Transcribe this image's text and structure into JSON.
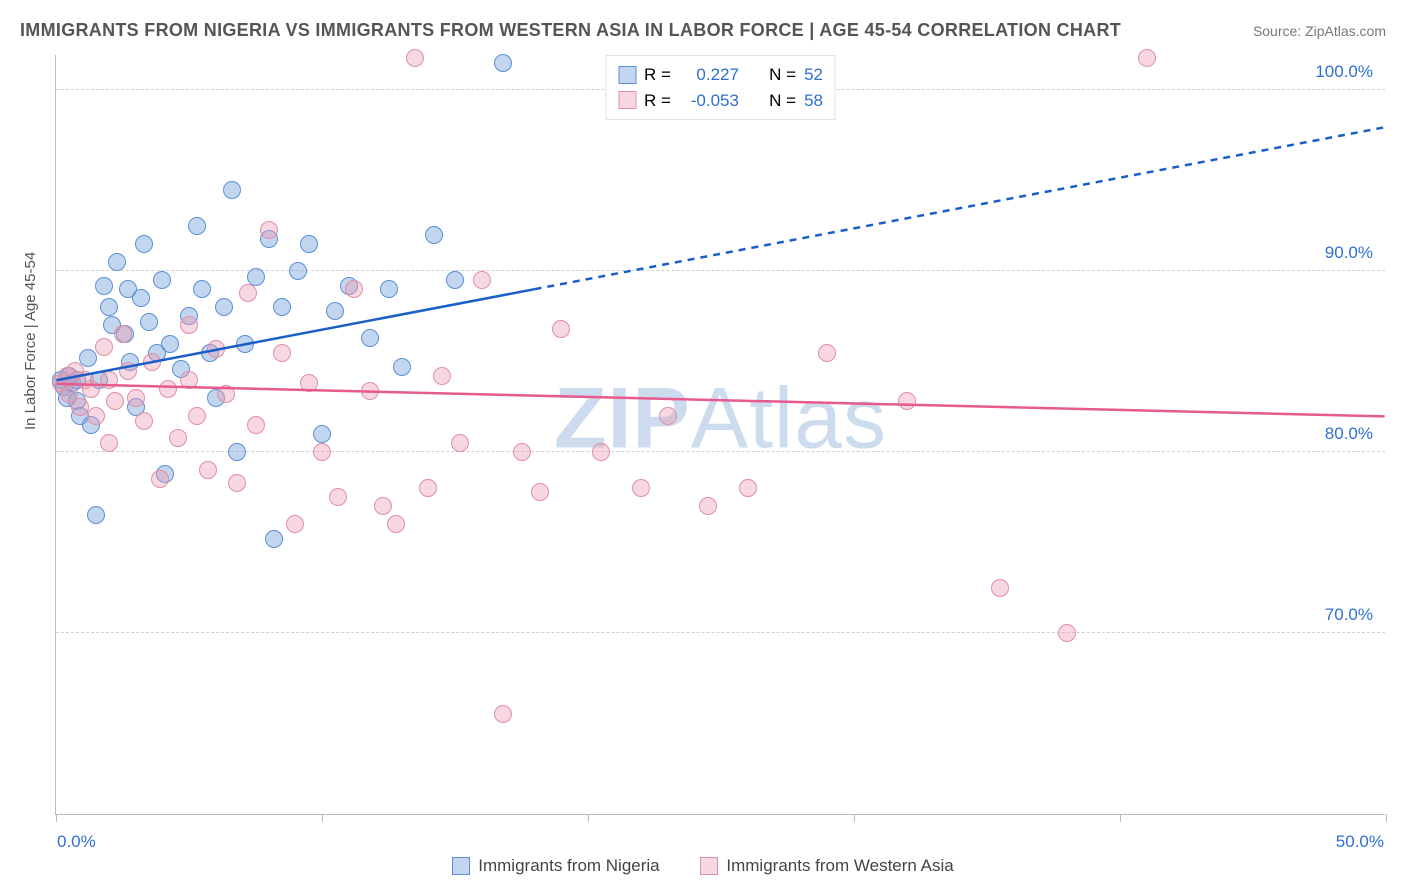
{
  "title": "IMMIGRANTS FROM NIGERIA VS IMMIGRANTS FROM WESTERN ASIA IN LABOR FORCE | AGE 45-54 CORRELATION CHART",
  "source": "Source: ZipAtlas.com",
  "y_axis_label": "In Labor Force | Age 45-54",
  "watermark_b": "ZIP",
  "watermark_r": "Atlas",
  "chart": {
    "type": "scatter",
    "xlim": [
      0,
      50
    ],
    "ylim": [
      60,
      102
    ],
    "y_ticks": [
      70,
      80,
      90,
      100
    ],
    "y_tick_labels": [
      "70.0%",
      "80.0%",
      "90.0%",
      "100.0%"
    ],
    "x_ticks": [
      0,
      10,
      20,
      30,
      40,
      50
    ],
    "x_tick_labels": [
      "0.0%",
      "",
      "",
      "",
      "",
      "50.0%"
    ],
    "grid_color": "#d0d0d0",
    "background_color": "#ffffff",
    "axis_color": "#bbbbbb",
    "tick_label_color": "#2f6fd0",
    "tick_fontsize": 17,
    "point_radius": 9,
    "series": [
      {
        "name": "Immigrants from Nigeria",
        "fill": "rgba(121,163,220,0.45)",
        "stroke": "#5b8fd6",
        "trend_color": "#1a5fc7",
        "trend_width": 2.5,
        "R": "0.227",
        "N": "52",
        "trend": {
          "x1": 0,
          "y1": 84.0,
          "x2": 50,
          "y2": 98.0,
          "solid_until_x": 18
        },
        "points": [
          [
            0.2,
            84.0
          ],
          [
            0.3,
            83.6
          ],
          [
            0.4,
            83.0
          ],
          [
            0.5,
            84.2
          ],
          [
            0.6,
            83.8
          ],
          [
            0.8,
            82.8
          ],
          [
            0.8,
            84.0
          ],
          [
            0.9,
            82.0
          ],
          [
            1.2,
            85.2
          ],
          [
            1.3,
            81.5
          ],
          [
            1.5,
            76.5
          ],
          [
            1.6,
            84.0
          ],
          [
            1.8,
            89.2
          ],
          [
            2.0,
            88.0
          ],
          [
            2.1,
            87.0
          ],
          [
            2.3,
            90.5
          ],
          [
            2.6,
            86.5
          ],
          [
            2.7,
            89.0
          ],
          [
            2.8,
            85.0
          ],
          [
            3.0,
            82.5
          ],
          [
            3.2,
            88.5
          ],
          [
            3.3,
            91.5
          ],
          [
            3.5,
            87.2
          ],
          [
            3.8,
            85.5
          ],
          [
            4.0,
            89.5
          ],
          [
            4.1,
            78.8
          ],
          [
            4.3,
            86.0
          ],
          [
            4.7,
            84.6
          ],
          [
            5.0,
            87.5
          ],
          [
            5.3,
            92.5
          ],
          [
            5.5,
            89.0
          ],
          [
            5.8,
            85.5
          ],
          [
            6.0,
            83.0
          ],
          [
            6.3,
            88.0
          ],
          [
            6.6,
            94.5
          ],
          [
            6.8,
            80.0
          ],
          [
            7.1,
            86.0
          ],
          [
            7.5,
            89.7
          ],
          [
            8.0,
            91.8
          ],
          [
            8.2,
            75.2
          ],
          [
            8.5,
            88.0
          ],
          [
            9.1,
            90.0
          ],
          [
            9.5,
            91.5
          ],
          [
            10.0,
            81.0
          ],
          [
            10.5,
            87.8
          ],
          [
            11.0,
            89.2
          ],
          [
            11.8,
            86.3
          ],
          [
            12.5,
            89.0
          ],
          [
            13.0,
            84.7
          ],
          [
            14.2,
            92.0
          ],
          [
            15.0,
            89.5
          ],
          [
            16.8,
            101.5
          ]
        ]
      },
      {
        "name": "Immigrants from Western Asia",
        "fill": "rgba(236,154,178,0.40)",
        "stroke": "#e08fa8",
        "trend_color": "#e75a8d",
        "trend_width": 2.5,
        "R": "-0.053",
        "N": "58",
        "trend": {
          "x1": 0,
          "y1": 83.8,
          "x2": 50,
          "y2": 82.0,
          "solid_until_x": 50
        },
        "points": [
          [
            0.2,
            83.8
          ],
          [
            0.4,
            84.2
          ],
          [
            0.5,
            83.2
          ],
          [
            0.7,
            84.5
          ],
          [
            0.9,
            82.5
          ],
          [
            1.1,
            84.0
          ],
          [
            1.3,
            83.5
          ],
          [
            1.5,
            82.0
          ],
          [
            1.8,
            85.8
          ],
          [
            2.0,
            84.0
          ],
          [
            2.0,
            80.5
          ],
          [
            2.2,
            82.8
          ],
          [
            2.5,
            86.5
          ],
          [
            2.7,
            84.5
          ],
          [
            3.0,
            83.0
          ],
          [
            3.3,
            81.7
          ],
          [
            3.6,
            85.0
          ],
          [
            3.9,
            78.5
          ],
          [
            4.2,
            83.5
          ],
          [
            4.6,
            80.8
          ],
          [
            5.0,
            84.0
          ],
          [
            5.0,
            87.0
          ],
          [
            5.3,
            82.0
          ],
          [
            5.7,
            79.0
          ],
          [
            6.0,
            85.7
          ],
          [
            6.4,
            83.2
          ],
          [
            6.8,
            78.3
          ],
          [
            7.2,
            88.8
          ],
          [
            7.5,
            81.5
          ],
          [
            8.0,
            92.3
          ],
          [
            8.5,
            85.5
          ],
          [
            9.0,
            76.0
          ],
          [
            9.5,
            83.8
          ],
          [
            10.0,
            80.0
          ],
          [
            10.6,
            77.5
          ],
          [
            11.2,
            89.0
          ],
          [
            11.8,
            83.4
          ],
          [
            12.3,
            77.0
          ],
          [
            12.8,
            76.0
          ],
          [
            13.5,
            101.8
          ],
          [
            14.0,
            78.0
          ],
          [
            14.5,
            84.2
          ],
          [
            15.2,
            80.5
          ],
          [
            16.0,
            89.5
          ],
          [
            16.8,
            65.5
          ],
          [
            17.5,
            80.0
          ],
          [
            18.2,
            77.8
          ],
          [
            19.0,
            86.8
          ],
          [
            20.5,
            80.0
          ],
          [
            22.0,
            78.0
          ],
          [
            23.0,
            82.0
          ],
          [
            24.5,
            77.0
          ],
          [
            26.0,
            78.0
          ],
          [
            29.0,
            85.5
          ],
          [
            32.0,
            82.8
          ],
          [
            35.5,
            72.5
          ],
          [
            38.0,
            70.0
          ],
          [
            41.0,
            101.8
          ]
        ]
      }
    ]
  },
  "legend_top": {
    "r_label": "R =",
    "n_label": "N =",
    "value_color": "#2f6fd0",
    "text_color": "#444444"
  },
  "legend_bottom": {
    "text_color": "#444444"
  }
}
